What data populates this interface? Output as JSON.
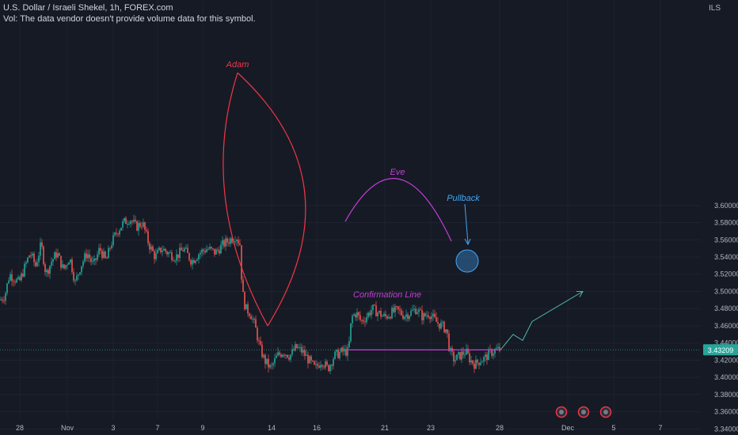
{
  "header": {
    "title": "U.S. Dollar / Israeli Shekel, 1h, FOREX.com",
    "volume_note": "Vol: The data vendor doesn't provide volume data for this symbol."
  },
  "price_axis": {
    "currency": "ILS"
  },
  "colors": {
    "background": "#161a25",
    "up": "#26a69a",
    "down": "#ef5350",
    "adam": "#f23645",
    "eve": "#c23ed6",
    "pullback": "#42a5f5",
    "projection": "#4db6ac",
    "last_price": "#26a69a"
  },
  "chart_data": {
    "type": "candlestick",
    "title": "U.S. Dollar / Israeli Shekel, 1h, FOREX.com",
    "ylim": [
      3.34,
      3.62
    ],
    "y_ticks": [
      "3.34000",
      "3.36000",
      "3.38000",
      "3.40000",
      "3.42000",
      "3.44000",
      "3.46000",
      "3.48000",
      "3.50000",
      "3.52000",
      "3.54000",
      "3.56000",
      "3.58000",
      "3.60000"
    ],
    "x_ticks": [
      "28",
      "Nov",
      "3",
      "7",
      "9",
      "14",
      "16",
      "21",
      "23",
      "28",
      "Dec",
      "5",
      "7"
    ],
    "last_price": "3.43209",
    "path_points": [
      [
        0,
        3.49
      ],
      [
        6,
        3.495
      ],
      [
        12,
        3.52
      ],
      [
        18,
        3.515
      ],
      [
        24,
        3.51
      ],
      [
        30,
        3.525
      ],
      [
        38,
        3.545
      ],
      [
        45,
        3.53
      ],
      [
        52,
        3.555
      ],
      [
        58,
        3.52
      ],
      [
        65,
        3.535
      ],
      [
        72,
        3.545
      ],
      [
        80,
        3.525
      ],
      [
        88,
        3.54
      ],
      [
        95,
        3.51
      ],
      [
        102,
        3.53
      ],
      [
        110,
        3.545
      ],
      [
        118,
        3.53
      ],
      [
        126,
        3.55
      ],
      [
        134,
        3.535
      ],
      [
        140,
        3.555
      ],
      [
        148,
        3.57
      ],
      [
        156,
        3.58
      ],
      [
        164,
        3.585
      ],
      [
        172,
        3.575
      ],
      [
        180,
        3.58
      ],
      [
        188,
        3.555
      ],
      [
        196,
        3.54
      ],
      [
        204,
        3.55
      ],
      [
        212,
        3.545
      ],
      [
        222,
        3.54
      ],
      [
        232,
        3.55
      ],
      [
        242,
        3.535
      ],
      [
        252,
        3.545
      ],
      [
        262,
        3.55
      ],
      [
        272,
        3.545
      ],
      [
        282,
        3.555
      ],
      [
        290,
        3.56
      ],
      [
        298,
        3.565
      ],
      [
        303,
        3.555
      ],
      [
        306,
        3.5
      ],
      [
        310,
        3.48
      ],
      [
        316,
        3.475
      ],
      [
        322,
        3.46
      ],
      [
        328,
        3.435
      ],
      [
        334,
        3.42
      ],
      [
        342,
        3.41
      ],
      [
        350,
        3.425
      ],
      [
        358,
        3.43
      ],
      [
        366,
        3.425
      ],
      [
        374,
        3.435
      ],
      [
        382,
        3.43
      ],
      [
        390,
        3.42
      ],
      [
        398,
        3.41
      ],
      [
        406,
        3.42
      ],
      [
        414,
        3.41
      ],
      [
        422,
        3.425
      ],
      [
        432,
        3.43
      ],
      [
        440,
        3.43
      ],
      [
        444,
        3.47
      ],
      [
        450,
        3.475
      ],
      [
        456,
        3.465
      ],
      [
        462,
        3.47
      ],
      [
        470,
        3.48
      ],
      [
        478,
        3.475
      ],
      [
        486,
        3.47
      ],
      [
        494,
        3.475
      ],
      [
        502,
        3.478
      ],
      [
        510,
        3.472
      ],
      [
        518,
        3.475
      ],
      [
        526,
        3.48
      ],
      [
        534,
        3.47
      ],
      [
        542,
        3.475
      ],
      [
        550,
        3.465
      ],
      [
        558,
        3.46
      ],
      [
        564,
        3.455
      ],
      [
        568,
        3.43
      ],
      [
        574,
        3.42
      ],
      [
        580,
        3.425
      ],
      [
        588,
        3.43
      ],
      [
        594,
        3.42
      ],
      [
        600,
        3.415
      ],
      [
        606,
        3.42
      ],
      [
        612,
        3.422
      ],
      [
        618,
        3.428
      ],
      [
        626,
        3.432
      ],
      [
        632,
        3.432
      ]
    ],
    "annotations": [
      {
        "label": "Adam"
      },
      {
        "label": "Eve"
      },
      {
        "label": "Pullback"
      },
      {
        "label": "Confirmation Line",
        "price": 3.432
      }
    ],
    "projection": [
      [
        632,
        3.432
      ],
      [
        648,
        3.45
      ],
      [
        660,
        3.443
      ],
      [
        672,
        3.465
      ],
      [
        736,
        3.5
      ]
    ]
  }
}
